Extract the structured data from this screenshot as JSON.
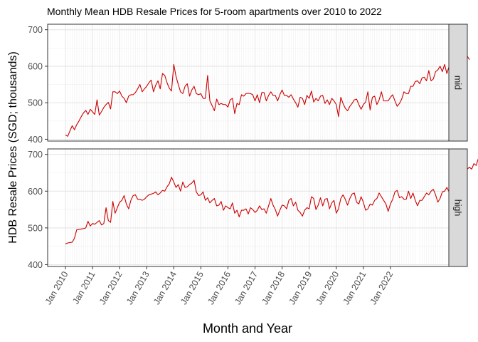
{
  "chart_data": {
    "type": "line",
    "title": "Monthly Mean HDB Resale Prices for 5-room apartments over 2010 to 2022",
    "xlabel": "Month and Year",
    "ylabel": "HDB Resale Prices (SGD; thousands)",
    "ylim": [
      395,
      715
    ],
    "y_ticks": [
      400,
      500,
      600,
      700
    ],
    "x_start": "2010-01",
    "x_ticks": [
      "Jan 2010",
      "Jan 2011",
      "Jan 2012",
      "Jan 2013",
      "Jan 2014",
      "Jan 2015",
      "Jan 2016",
      "Jan 2017",
      "Jan 2018",
      "Jan 2019",
      "Jan 2020",
      "Jan 2021",
      "Jan 2022"
    ],
    "line_color": "#cc0000",
    "grid": true,
    "facet_order": [
      "mid",
      "high"
    ],
    "series": [
      {
        "name": "mid",
        "values": [
          412,
          408,
          423,
          437,
          426,
          440,
          450,
          462,
          472,
          479,
          468,
          482,
          475,
          468,
          508,
          466,
          476,
          487,
          495,
          501,
          483,
          530,
          530,
          525,
          532,
          518,
          512,
          500,
          518,
          522,
          522,
          528,
          538,
          550,
          530,
          538,
          545,
          555,
          562,
          530,
          548,
          560,
          538,
          580,
          575,
          555,
          540,
          532,
          605,
          572,
          550,
          530,
          525,
          545,
          552,
          518,
          535,
          545,
          525,
          522,
          525,
          512,
          512,
          575,
          505,
          492,
          478,
          510,
          495,
          498,
          495,
          495,
          488,
          508,
          512,
          470,
          498,
          495,
          522,
          518,
          525,
          526,
          525,
          522,
          505,
          522,
          500,
          528,
          528,
          505,
          520,
          530,
          520,
          520,
          505,
          522,
          535,
          520,
          520,
          515,
          522,
          510,
          500,
          488,
          515,
          512,
          495,
          520,
          512,
          532,
          502,
          512,
          505,
          518,
          520,
          498,
          508,
          495,
          512,
          505,
          495,
          462,
          515,
          498,
          485,
          478,
          490,
          498,
          508,
          510,
          495,
          482,
          495,
          502,
          530,
          480,
          515,
          518,
          495,
          508,
          530,
          505,
          505,
          505,
          515,
          522,
          505,
          490,
          498,
          510,
          530,
          525,
          525,
          545,
          545,
          558,
          560,
          552,
          568,
          570,
          560,
          588,
          560,
          565,
          585,
          590,
          600,
          585,
          605,
          580,
          600,
          595,
          590,
          615,
          612,
          600,
          620,
          635,
          628,
          618
        ]
      },
      {
        "name": "high",
        "values": [
          456,
          459,
          460,
          461,
          472,
          495,
          496,
          497,
          498,
          500,
          518,
          505,
          512,
          510,
          515,
          520,
          508,
          512,
          555,
          520,
          515,
          572,
          540,
          555,
          570,
          575,
          588,
          565,
          552,
          575,
          588,
          590,
          578,
          578,
          575,
          578,
          585,
          590,
          592,
          594,
          598,
          590,
          595,
          602,
          600,
          612,
          620,
          638,
          625,
          610,
          618,
          600,
          625,
          610,
          612,
          618,
          622,
          630,
          598,
          588,
          590,
          598,
          575,
          582,
          568,
          575,
          580,
          560,
          562,
          572,
          548,
          560,
          555,
          552,
          568,
          540,
          548,
          530,
          548,
          548,
          552,
          538,
          555,
          550,
          542,
          548,
          560,
          550,
          552,
          540,
          560,
          580,
          562,
          550,
          532,
          548,
          562,
          560,
          552,
          575,
          580,
          560,
          570,
          548,
          542,
          532,
          548,
          555,
          552,
          585,
          580,
          550,
          562,
          582,
          560,
          578,
          580,
          552,
          568,
          575,
          540,
          552,
          580,
          590,
          578,
          562,
          580,
          592,
          595,
          570,
          565,
          585,
          570,
          548,
          552,
          565,
          562,
          575,
          580,
          595,
          585,
          575,
          565,
          545,
          565,
          578,
          598,
          602,
          582,
          585,
          578,
          578,
          600,
          580,
          595,
          575,
          560,
          575,
          575,
          585,
          595,
          590,
          600,
          605,
          590,
          570,
          580,
          598,
          600,
          610,
          598,
          620,
          622,
          640,
          630,
          618,
          628,
          640,
          660,
          665,
          660,
          675,
          670,
          690,
          695,
          705,
          680,
          665
        ]
      }
    ]
  }
}
